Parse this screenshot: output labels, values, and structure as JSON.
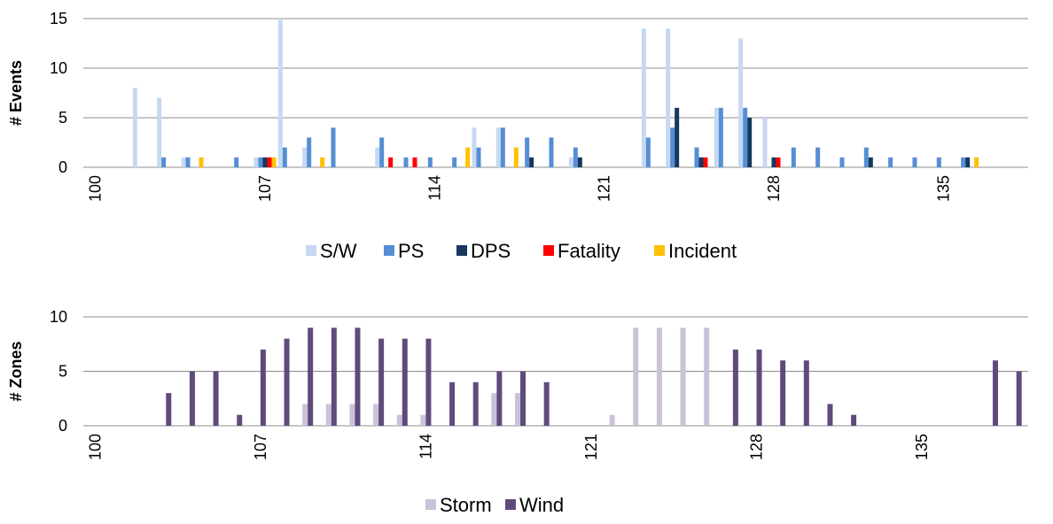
{
  "chart_data": [
    {
      "type": "bar",
      "ylabel": "# Events",
      "ylim": [
        0,
        15
      ],
      "yticks": [
        0,
        5,
        10,
        15
      ],
      "xticks": [
        100,
        107,
        114,
        121,
        128,
        135
      ],
      "x": [
        100,
        101,
        102,
        103,
        104,
        105,
        106,
        107,
        108,
        109,
        110,
        111,
        112,
        113,
        114,
        115,
        116,
        117,
        118,
        119,
        120,
        121,
        122,
        123,
        124,
        125,
        126,
        127,
        128,
        129,
        130,
        131,
        132,
        133,
        134,
        135,
        136,
        137,
        138
      ],
      "legend_position": "bottom",
      "grid": true,
      "series": [
        {
          "name": "S/W",
          "color": "#c5d9f1",
          "values": [
            0,
            0,
            8,
            7,
            1,
            0,
            0,
            1,
            15,
            2,
            0,
            0,
            2,
            0,
            0,
            0,
            4,
            4,
            0,
            0,
            1,
            0,
            0,
            14,
            14,
            0,
            6,
            13,
            5,
            0,
            0,
            0,
            0,
            0,
            0,
            0,
            0,
            0,
            0
          ]
        },
        {
          "name": "PS",
          "color": "#558ed5",
          "values": [
            0,
            0,
            0,
            1,
            1,
            0,
            1,
            1,
            2,
            3,
            4,
            0,
            3,
            1,
            1,
            1,
            2,
            4,
            3,
            3,
            2,
            0,
            0,
            3,
            4,
            2,
            6,
            6,
            0,
            2,
            2,
            1,
            2,
            1,
            1,
            1,
            1,
            0,
            0
          ]
        },
        {
          "name": "DPS",
          "color": "#17375e",
          "values": [
            0,
            0,
            0,
            0,
            0,
            0,
            0,
            1,
            0,
            0,
            0,
            0,
            0,
            0,
            0,
            0,
            0,
            0,
            1,
            0,
            1,
            0,
            0,
            0,
            6,
            1,
            0,
            5,
            1,
            0,
            0,
            0,
            1,
            0,
            0,
            0,
            1,
            0,
            0
          ]
        },
        {
          "name": "Fatality",
          "color": "#ff0000",
          "values": [
            0,
            0,
            0,
            0,
            0,
            0,
            0,
            1,
            0,
            0,
            0,
            0,
            1,
            1,
            0,
            0,
            0,
            0,
            0,
            0,
            0,
            0,
            0,
            0,
            0,
            1,
            0,
            0,
            1,
            0,
            0,
            0,
            0,
            0,
            0,
            0,
            0,
            0,
            0
          ]
        },
        {
          "name": "Incident",
          "color": "#ffc000",
          "values": [
            0,
            0,
            0,
            0,
            1,
            0,
            0,
            1,
            0,
            1,
            0,
            0,
            0,
            0,
            0,
            2,
            0,
            2,
            0,
            0,
            0,
            0,
            0,
            0,
            0,
            0,
            0,
            0,
            0,
            0,
            0,
            0,
            0,
            0,
            0,
            0,
            1,
            0,
            0
          ]
        }
      ]
    },
    {
      "type": "bar",
      "ylabel": "# Zones",
      "ylim": [
        0,
        10
      ],
      "yticks": [
        0,
        5,
        10
      ],
      "xticks": [
        100,
        107,
        114,
        121,
        128,
        135
      ],
      "x": [
        100,
        101,
        102,
        103,
        104,
        105,
        106,
        107,
        108,
        109,
        110,
        111,
        112,
        113,
        114,
        115,
        116,
        117,
        118,
        119,
        120,
        121,
        122,
        123,
        124,
        125,
        126,
        127,
        128,
        129,
        130,
        131,
        132,
        133,
        134,
        135,
        136,
        137,
        138,
        139
      ],
      "legend_position": "bottom",
      "grid": true,
      "series": [
        {
          "name": "Storm",
          "color": "#ccc1da",
          "values": [
            0,
            0,
            0,
            0,
            0,
            0,
            0,
            0,
            0,
            2,
            2,
            2,
            2,
            1,
            1,
            0,
            0,
            3,
            3,
            0,
            0,
            0,
            1,
            9,
            9,
            9,
            9,
            0,
            0,
            0,
            0,
            0,
            0,
            0,
            0,
            0,
            0,
            0,
            0,
            0
          ]
        },
        {
          "name": "Wind",
          "color": "#604a7b",
          "values": [
            0,
            0,
            0,
            3,
            5,
            5,
            1,
            7,
            8,
            9,
            9,
            9,
            8,
            8,
            8,
            4,
            4,
            5,
            5,
            4,
            0,
            0,
            0,
            0,
            0,
            0,
            0,
            7,
            7,
            6,
            6,
            2,
            1,
            0,
            0,
            0,
            0,
            0,
            6,
            5
          ]
        }
      ]
    }
  ]
}
